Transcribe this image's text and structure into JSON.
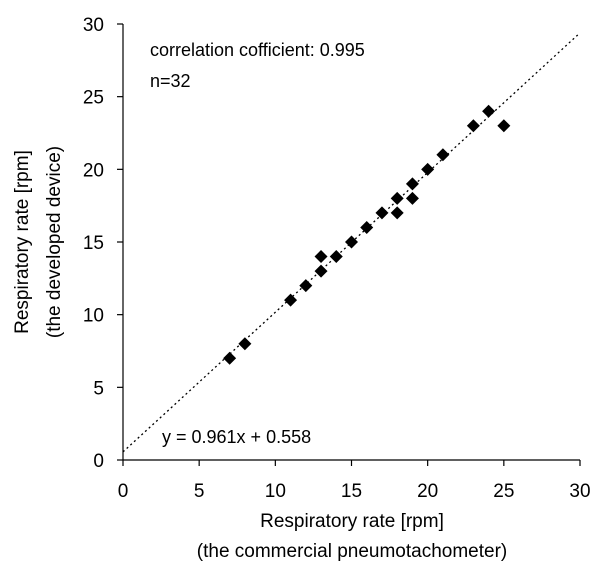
{
  "chart_data": {
    "type": "scatter",
    "xlabel": "Respiratory rate [rpm]",
    "xlabel_line2": "(the commercial pneumotachometer)",
    "ylabel": "Respiratory rate [rpm]",
    "ylabel_line2": "(the developed device)",
    "xlim": [
      0,
      30
    ],
    "ylim": [
      0,
      30
    ],
    "xticks": [
      0,
      5,
      10,
      15,
      20,
      25,
      30
    ],
    "yticks": [
      0,
      5,
      10,
      15,
      20,
      25,
      30
    ],
    "grid": false,
    "legend": "none",
    "annotations": {
      "correlation": "correlation cofficient: 0.995",
      "n": "n=32",
      "equation": "y = 0.961x + 0.558"
    },
    "trendline": {
      "slope": 0.961,
      "intercept": 0.558,
      "style": "dotted"
    },
    "marker": "diamond",
    "marker_color": "#000000",
    "points": [
      {
        "x": 7,
        "y": 7
      },
      {
        "x": 8,
        "y": 8
      },
      {
        "x": 11,
        "y": 11
      },
      {
        "x": 12,
        "y": 12
      },
      {
        "x": 13,
        "y": 13
      },
      {
        "x": 13,
        "y": 14
      },
      {
        "x": 14,
        "y": 14
      },
      {
        "x": 15,
        "y": 15
      },
      {
        "x": 16,
        "y": 16
      },
      {
        "x": 17,
        "y": 17
      },
      {
        "x": 18,
        "y": 17
      },
      {
        "x": 18,
        "y": 18
      },
      {
        "x": 19,
        "y": 18
      },
      {
        "x": 19,
        "y": 19
      },
      {
        "x": 20,
        "y": 20
      },
      {
        "x": 21,
        "y": 21
      },
      {
        "x": 23,
        "y": 23
      },
      {
        "x": 24,
        "y": 24
      },
      {
        "x": 25,
        "y": 23
      }
    ]
  }
}
